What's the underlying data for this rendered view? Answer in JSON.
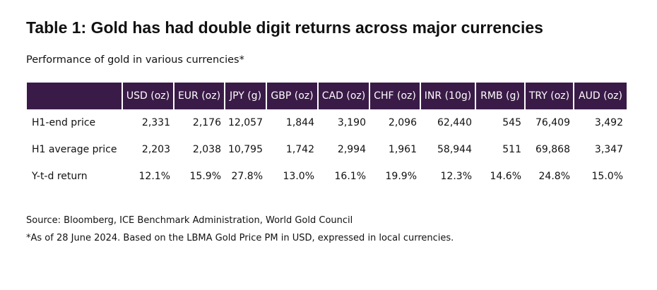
{
  "title": "Table 1: Gold has had double digit returns across major currencies",
  "subtitle": "Performance of gold in various currencies*",
  "table": {
    "columns": [
      "USD (oz)",
      "EUR (oz)",
      "JPY (g)",
      "GBP (oz)",
      "CAD (oz)",
      "CHF (oz)",
      "INR (10g)",
      "RMB (g)",
      "TRY (oz)",
      "AUD (oz)"
    ],
    "rows": [
      {
        "label": "H1-end price",
        "cells": [
          "2,331",
          "2,176",
          "12,057",
          "1,844",
          "3,190",
          "2,096",
          "62,440",
          "545",
          "76,409",
          "3,492"
        ]
      },
      {
        "label": "H1 average price",
        "cells": [
          "2,203",
          "2,038",
          "10,795",
          "1,742",
          "2,994",
          "1,961",
          "58,944",
          "511",
          "69,868",
          "3,347"
        ]
      },
      {
        "label": "Y-t-d return",
        "cells": [
          "12.1%",
          "15.9%",
          "27.8%",
          "13.0%",
          "16.1%",
          "19.9%",
          "12.3%",
          "14.6%",
          "24.8%",
          "15.0%"
        ]
      }
    ]
  },
  "notes": [
    "Source: Bloomberg, ICE Benchmark Administration, World Gold Council",
    "*As of 28 June 2024.  Based on the LBMA Gold Price PM in USD, expressed in local currencies."
  ]
}
